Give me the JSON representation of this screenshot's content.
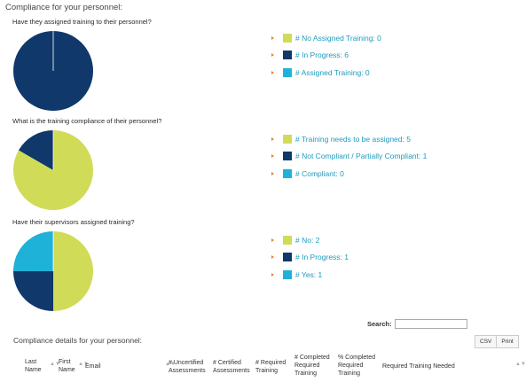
{
  "section_title": "Compliance for your personnel:",
  "charts": [
    {
      "question": "Have they assigned training to their personnel?",
      "legend": [
        {
          "label": "# No Assigned Training: 0",
          "color": "#d0dc58"
        },
        {
          "label": "# In Progress: 6",
          "color": "#10386a"
        },
        {
          "label": "# Assigned Training: 0",
          "color": "#1eb2d8"
        }
      ]
    },
    {
      "question": "What is the training compliance of their personnel?",
      "legend": [
        {
          "label": "# Training needs to be assigned: 5",
          "color": "#d0dc58"
        },
        {
          "label": "# Not Compliant / Partially Compliant: 1",
          "color": "#10386a"
        },
        {
          "label": "# Compliant: 0",
          "color": "#1eb2d8"
        }
      ]
    },
    {
      "question": "Have their supervisors assigned training?",
      "legend": [
        {
          "label": "# No: 2",
          "color": "#d0dc58"
        },
        {
          "label": "# In Progress: 1",
          "color": "#10386a"
        },
        {
          "label": "# Yes: 1",
          "color": "#1eb2d8"
        }
      ]
    }
  ],
  "chart_data": [
    {
      "type": "pie",
      "categories": [
        "No Assigned Training",
        "In Progress",
        "Assigned Training"
      ],
      "values": [
        0,
        6,
        0
      ],
      "colors": [
        "#d0dc58",
        "#10386a",
        "#1eb2d8"
      ]
    },
    {
      "type": "pie",
      "categories": [
        "Training needs to be assigned",
        "Not Compliant / Partially Compliant",
        "Compliant"
      ],
      "values": [
        5,
        1,
        0
      ],
      "colors": [
        "#d0dc58",
        "#10386a",
        "#1eb2d8"
      ]
    },
    {
      "type": "pie",
      "categories": [
        "No",
        "In Progress",
        "Yes"
      ],
      "values": [
        2,
        1,
        1
      ],
      "colors": [
        "#d0dc58",
        "#10386a",
        "#1eb2d8"
      ]
    }
  ],
  "search": {
    "label": "Search:",
    "placeholder": ""
  },
  "buttons": {
    "csv": "CSV",
    "print": "Print"
  },
  "details_title": "Compliance details for your personnel:",
  "table_headers": [
    "Last Name",
    "First Name",
    "Email",
    "# Uncertified Assessments",
    "# Certified Assessments",
    "# Required Training",
    "# Completed Required Training",
    "% Completed Required Training",
    "Required Training Needed"
  ]
}
